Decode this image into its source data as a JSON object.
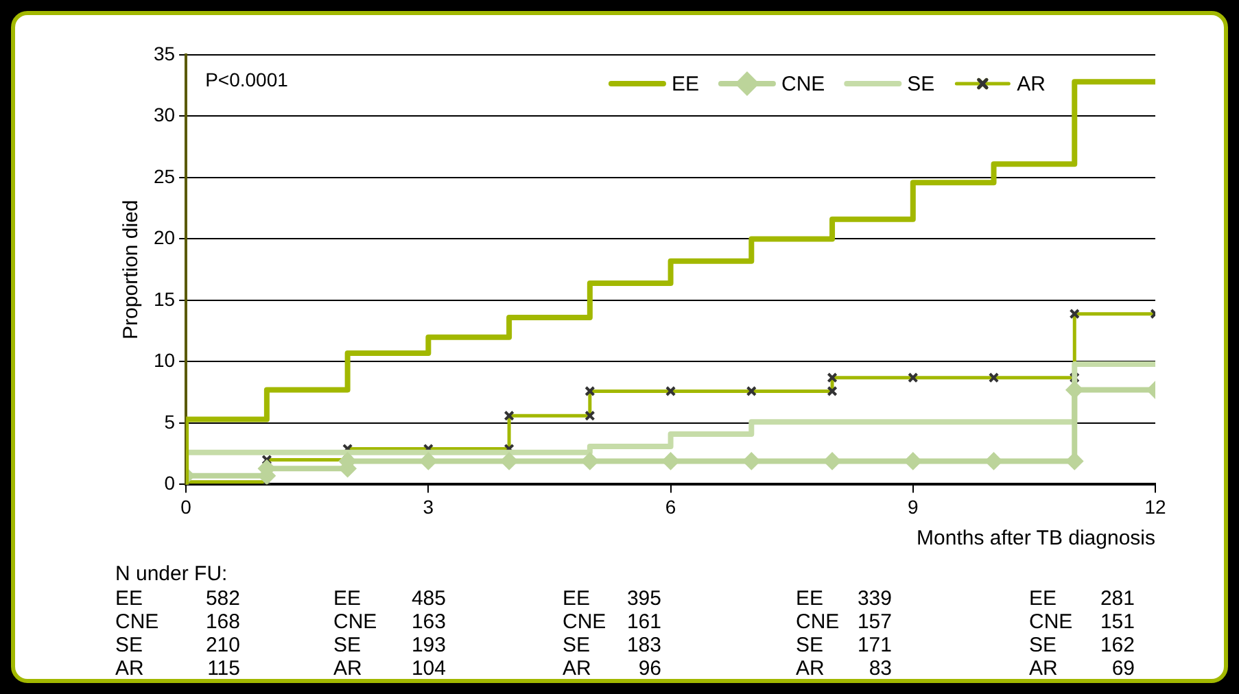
{
  "chart_data": {
    "type": "step",
    "xlabel": "Months after TB diagnosis",
    "ylabel": "Proportion died",
    "xlim": [
      0,
      12
    ],
    "xticks": [
      0,
      3,
      6,
      9,
      12
    ],
    "ylim": [
      0,
      35
    ],
    "yticks": [
      0,
      5,
      10,
      15,
      20,
      25,
      30,
      35
    ],
    "grid": "y",
    "legend": "top right",
    "series": [
      {
        "name": "EE",
        "color": "#a2b800",
        "marker": "none",
        "x": [
          0,
          0,
          1,
          2,
          3,
          4,
          5,
          6,
          7,
          8,
          9,
          10,
          11,
          12
        ],
        "values": [
          0,
          5.3,
          7.7,
          10.7,
          12,
          13.6,
          16.4,
          18.2,
          20,
          21.6,
          24.6,
          26.1,
          32.8,
          32.8
        ]
      },
      {
        "name": "CNE",
        "color": "#bcd49a",
        "marker": "diamond",
        "x": [
          0,
          1,
          1,
          2,
          2,
          3,
          4,
          5,
          6,
          7,
          8,
          9,
          10,
          11,
          11,
          12
        ],
        "values": [
          0.7,
          0.7,
          1.3,
          1.3,
          1.9,
          1.9,
          1.9,
          1.9,
          1.9,
          1.9,
          1.9,
          1.9,
          1.9,
          1.9,
          7.7,
          7.7
        ]
      },
      {
        "name": "SE",
        "color": "#c6dca8",
        "marker": "none",
        "x": [
          0,
          0,
          5,
          6,
          7,
          11,
          12
        ],
        "values": [
          0,
          2.6,
          3.1,
          4.1,
          5.1,
          9.8,
          9.8
        ]
      },
      {
        "name": "AR",
        "color": "#a2b800",
        "marker": "cross",
        "x": [
          0,
          1,
          1,
          2,
          2,
          3,
          4,
          4,
          5,
          5,
          6,
          7,
          8,
          8,
          9,
          10,
          11,
          11,
          12
        ],
        "values": [
          0.2,
          0.2,
          2.0,
          2.0,
          2.9,
          2.9,
          2.9,
          5.6,
          5.6,
          7.6,
          7.6,
          7.6,
          7.6,
          8.7,
          8.7,
          8.7,
          8.7,
          13.9,
          13.9
        ]
      }
    ],
    "annotations": [
      "P<0.0001",
      "N under FU:",
      "EE",
      "582",
      "CNE",
      "168",
      "SE",
      "210",
      "AR",
      "115",
      "EE",
      "485",
      "CNE",
      "163",
      "SE",
      "193",
      "AR",
      "104",
      "EE",
      "395",
      "CNE",
      "161",
      "SE",
      "183",
      "AR",
      "96",
      "EE",
      "339",
      "CNE",
      "157",
      "SE",
      "171",
      "AR",
      "83",
      "EE",
      "281",
      "CNE",
      "151",
      "SE",
      "162",
      "AR",
      "69"
    ]
  }
}
